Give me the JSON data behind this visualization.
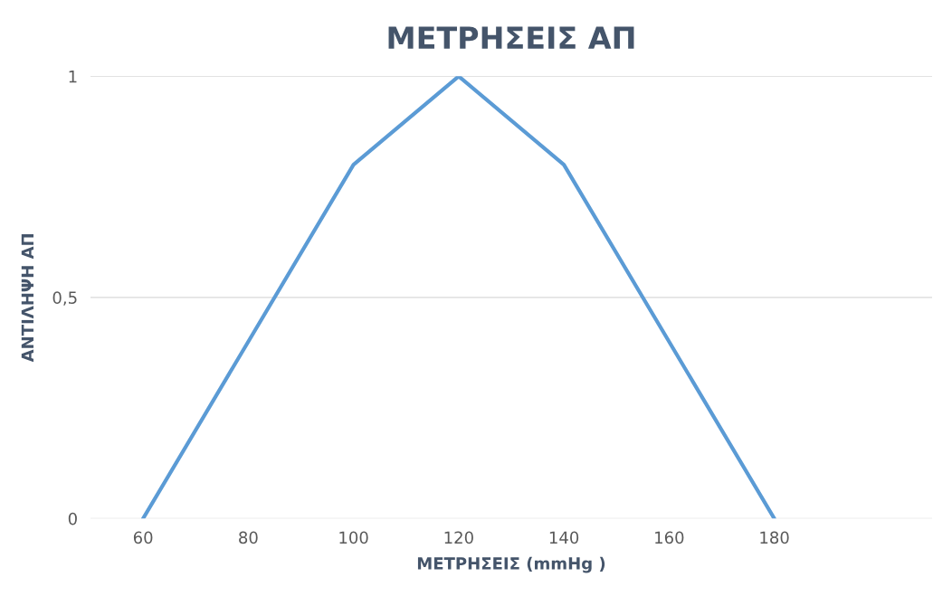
{
  "chart_data": {
    "type": "line",
    "title": "ΜΕΤΡΗΣΕΙΣ ΑΠ",
    "xlabel": "ΜΕΤΡΗΣΕΙΣ (mmHg )",
    "ylabel": "ΑΝΤΙΛΗΨΗ ΑΠ",
    "categories": [
      "60",
      "80",
      "100",
      "120",
      "140",
      "160",
      "180",
      null
    ],
    "series": [
      {
        "color": "#5b9bd5",
        "values": [
          0,
          0.4,
          0.8,
          1,
          0.8,
          0.4,
          0,
          null
        ]
      }
    ],
    "ylim": [
      0,
      1
    ],
    "yticks": [
      0,
      {
        "value": 0.5,
        "label": "0,5"
      },
      1
    ],
    "grid": "y",
    "marker": "none",
    "line_style": "solid"
  }
}
